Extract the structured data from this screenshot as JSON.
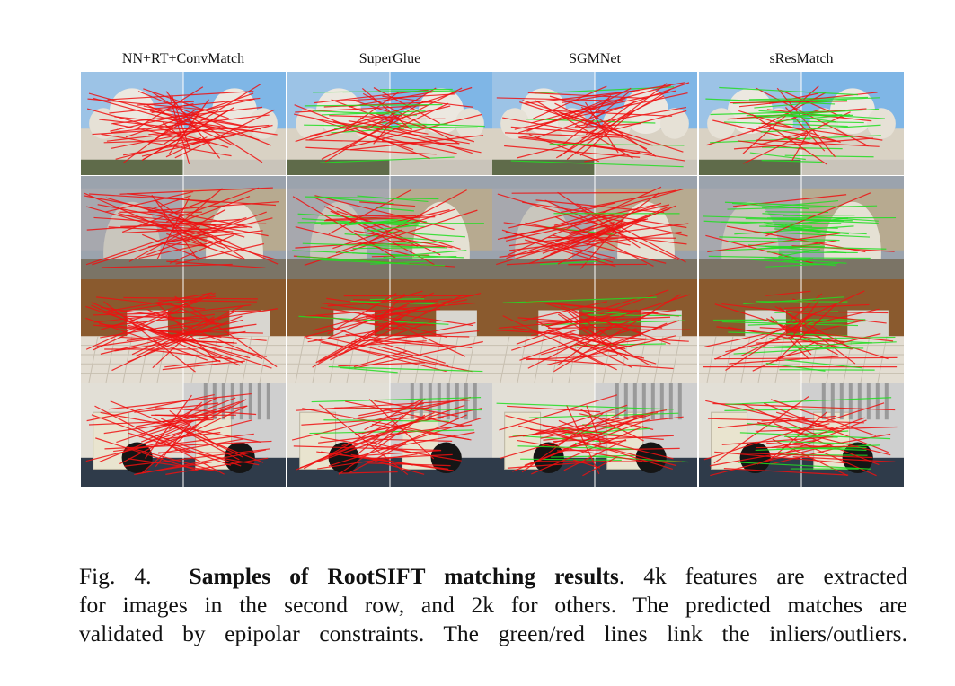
{
  "figure": {
    "columns": [
      {
        "id": "nn",
        "title": "NN+RT+ConvMatch"
      },
      {
        "id": "superglue",
        "title": "SuperGlue"
      },
      {
        "id": "sgmnet",
        "title": "SGMNet"
      },
      {
        "id": "sresmatch",
        "title": "sResMatch"
      }
    ],
    "rows": [
      {
        "scene": "cathedral-domes-exterior",
        "inlier_ratio": [
          0.0,
          0.2,
          0.2,
          0.45
        ]
      },
      {
        "scene": "triumphal-arch-ruins",
        "inlier_ratio": [
          0.0,
          0.5,
          0.05,
          0.8
        ]
      },
      {
        "scene": "kitchen-interior",
        "inlier_ratio": [
          0.0,
          0.1,
          0.2,
          0.35
        ]
      },
      {
        "scene": "office-interior",
        "inlier_ratio": [
          0.0,
          0.25,
          0.3,
          0.45
        ]
      }
    ],
    "legend_colors": {
      "inlier": "#22dd22",
      "outlier": "#ee1111"
    }
  },
  "caption": {
    "fig_label": "Fig. 4.",
    "bold_title": "Samples of RootSIFT matching results",
    "line1_rest": ". 4k features are extracted",
    "line2": "for images in the second row, and 2k for others. The predicted matches are",
    "line3": "validated by epipolar constraints. The green/red lines link the inliers/outliers."
  }
}
